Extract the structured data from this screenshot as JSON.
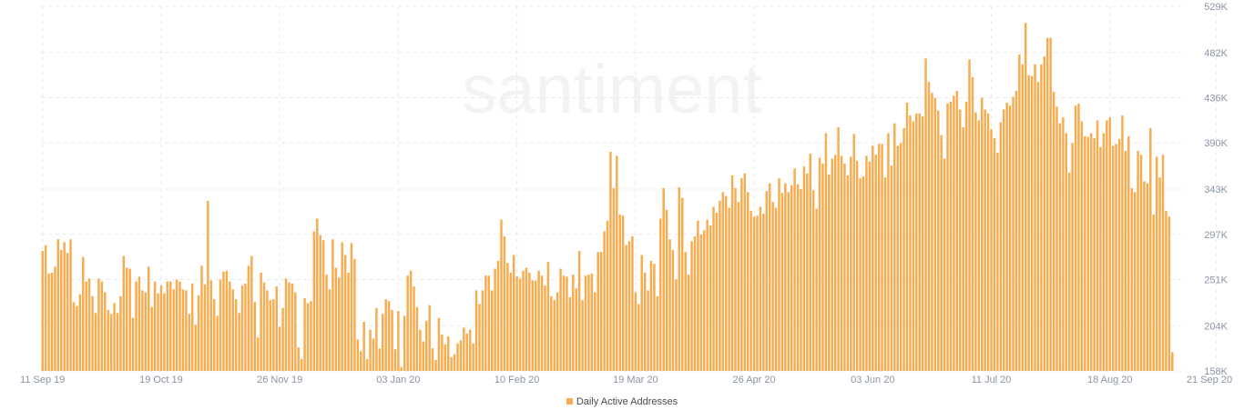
{
  "watermark": "santiment",
  "colors": {
    "bar": "#f7ac4f",
    "grid": "#e6e9ef",
    "tick": "#8a94a6"
  },
  "legend": {
    "label": "Daily Active Addresses"
  },
  "chart_data": {
    "type": "bar",
    "title": "",
    "xlabel": "",
    "ylabel": "",
    "ylim": [
      158000,
      529000
    ],
    "y_ticks": [
      "529K",
      "482K",
      "436K",
      "390K",
      "343K",
      "297K",
      "251K",
      "204K",
      "158K"
    ],
    "y_tick_values": [
      529000,
      482000,
      436000,
      390000,
      343000,
      297000,
      251000,
      204000,
      158000
    ],
    "x_ticks": [
      "11 Sep 19",
      "19 Oct 19",
      "26 Nov 19",
      "03 Jan 20",
      "10 Feb 20",
      "19 Mar 20",
      "26 Apr 20",
      "03 Jun 20",
      "11 Jul 20",
      "18 Aug 20",
      "21 Sep 20"
    ],
    "x_start": "2019-09-11",
    "grid": true,
    "legend_position": "bottom",
    "series": [
      {
        "name": "Daily Active Addresses",
        "values": [
          280,
          286,
          257,
          258,
          264,
          292,
          281,
          289,
          278,
          292,
          228,
          224,
          236,
          274,
          249,
          252,
          234,
          217,
          252,
          249,
          238,
          220,
          216,
          227,
          217,
          234,
          275,
          263,
          262,
          212,
          249,
          254,
          240,
          238,
          264,
          223,
          249,
          237,
          245,
          237,
          249,
          249,
          241,
          251,
          249,
          241,
          240,
          216,
          247,
          205,
          235,
          265,
          246,
          331,
          250,
          231,
          214,
          251,
          259,
          260,
          249,
          241,
          231,
          217,
          245,
          247,
          265,
          275,
          228,
          192,
          258,
          248,
          240,
          230,
          231,
          244,
          203,
          222,
          252,
          248,
          247,
          238,
          182,
          170,
          232,
          227,
          229,
          300,
          313,
          296,
          291,
          256,
          241,
          292,
          263,
          253,
          289,
          276,
          258,
          288,
          272,
          190,
          178,
          208,
          170,
          200,
          191,
          222,
          181,
          216,
          231,
          229,
          220,
          180,
          219,
          162,
          214,
          255,
          260,
          244,
          223,
          200,
          188,
          209,
          225,
          181,
          169,
          212,
          195,
          185,
          193,
          172,
          175,
          186,
          189,
          202,
          196,
          200,
          186,
          240,
          226,
          240,
          255,
          255,
          240,
          262,
          270,
          312,
          295,
          268,
          258,
          276,
          254,
          252,
          260,
          263,
          258,
          250,
          250,
          260,
          255,
          245,
          269,
          234,
          230,
          238,
          262,
          255,
          254,
          233,
          256,
          242,
          280,
          230,
          255,
          256,
          257,
          238,
          279,
          279,
          300,
          311,
          381,
          344,
          377,
          317,
          316,
          286,
          290,
          295,
          238,
          226,
          276,
          258,
          240,
          270,
          267,
          234,
          313,
          344,
          322,
          292,
          281,
          251,
          345,
          334,
          279,
          256,
          290,
          295,
          311,
          297,
          301,
          312,
          306,
          325,
          319,
          331,
          340,
          336,
          324,
          357,
          344,
          330,
          354,
          359,
          340,
          321,
          315,
          316,
          325,
          318,
          341,
          349,
          330,
          324,
          354,
          339,
          349,
          340,
          347,
          364,
          348,
          343,
          366,
          359,
          379,
          342,
          323,
          375,
          369,
          400,
          358,
          374,
          378,
          406,
          377,
          369,
          357,
          376,
          399,
          372,
          354,
          356,
          377,
          371,
          387,
          378,
          389,
          389,
          355,
          400,
          367,
          410,
          387,
          390,
          405,
          431,
          418,
          412,
          420,
          420,
          417,
          476,
          452,
          441,
          436,
          423,
          398,
          374,
          430,
          432,
          438,
          443,
          424,
          406,
          432,
          475,
          457,
          421,
          413,
          436,
          424,
          420,
          404,
          395,
          380,
          411,
          424,
          431,
          428,
          437,
          443,
          480,
          470,
          512,
          459,
          458,
          470,
          452,
          470,
          478,
          497,
          497,
          442,
          427,
          410,
          416,
          400,
          360,
          390,
          428,
          430,
          412,
          397,
          396,
          400,
          395,
          413,
          386,
          400,
          413,
          416,
          387,
          389,
          394,
          418,
          382,
          397,
          344,
          340,
          382,
          378,
          351,
          349,
          405,
          317,
          376,
          355,
          378,
          321,
          315,
          177
        ]
      }
    ]
  }
}
